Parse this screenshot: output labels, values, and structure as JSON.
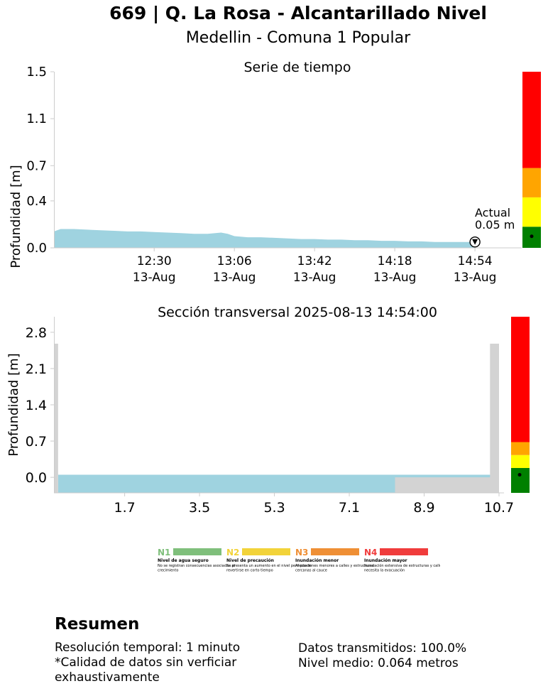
{
  "header": {
    "title": "669 | Q. La Rosa -  Alcantarillado Nivel",
    "subtitle": "Medellin - Comuna 1 Popular"
  },
  "colors": {
    "water": "#9fd3e0",
    "ground": "#d3d3d3",
    "level_green": "#008000",
    "level_yellow": "#ffff00",
    "level_orange": "#ffa500",
    "level_red": "#ff0000"
  },
  "chart_data": [
    {
      "type": "area",
      "title": "Serie de tiempo",
      "ylabel": "Profundidad [m]",
      "xlabel": "",
      "ylim": [
        0,
        1.5
      ],
      "yticks": [
        "0.0",
        "0.4",
        "0.7",
        "1.1",
        "1.5"
      ],
      "ytick_values": [
        0.0,
        0.4,
        0.7,
        1.1,
        1.5
      ],
      "xlim_minutes": [
        11.75,
        15.25
      ],
      "xticks": [
        {
          "label": "12:30",
          "date": "13-Aug"
        },
        {
          "label": "13:06",
          "date": "13-Aug"
        },
        {
          "label": "13:42",
          "date": "13-Aug"
        },
        {
          "label": "14:18",
          "date": "13-Aug"
        },
        {
          "label": "14:54",
          "date": "13-Aug"
        }
      ],
      "xtick_hours": [
        12.5,
        13.1,
        13.7,
        14.3,
        14.9
      ],
      "series": [
        {
          "name": "Profundidad",
          "x_hours": [
            11.75,
            11.8,
            11.9,
            12.0,
            12.1,
            12.2,
            12.3,
            12.4,
            12.5,
            12.6,
            12.7,
            12.8,
            12.9,
            13.0,
            13.05,
            13.1,
            13.2,
            13.3,
            13.4,
            13.5,
            13.6,
            13.7,
            13.8,
            13.9,
            14.0,
            14.1,
            14.2,
            14.3,
            14.4,
            14.5,
            14.6,
            14.7,
            14.8,
            14.9
          ],
          "values": [
            0.14,
            0.16,
            0.16,
            0.155,
            0.15,
            0.145,
            0.14,
            0.14,
            0.135,
            0.13,
            0.125,
            0.12,
            0.12,
            0.13,
            0.12,
            0.1,
            0.09,
            0.09,
            0.085,
            0.08,
            0.075,
            0.075,
            0.07,
            0.07,
            0.065,
            0.065,
            0.06,
            0.06,
            0.055,
            0.055,
            0.05,
            0.05,
            0.05,
            0.05
          ]
        }
      ],
      "annotation": {
        "label": "Actual",
        "value_text": "0.05 m",
        "value": 0.05
      },
      "level_bar": {
        "thresholds": [
          0.0,
          0.18,
          0.43,
          0.68,
          1.5
        ],
        "current": 0.05
      }
    },
    {
      "type": "area",
      "title": "Sección transversal 2025-08-13 14:54:00",
      "ylabel": "Profundidad [m]",
      "ylim": [
        -0.3,
        3.1
      ],
      "yticks": [
        "0.0",
        "0.7",
        "1.4",
        "2.1",
        "2.8"
      ],
      "ytick_values": [
        0.0,
        0.7,
        1.4,
        2.1,
        2.8
      ],
      "xlim": [
        0,
        10.7
      ],
      "xticks": [
        "1.7",
        "3.5",
        "5.3",
        "7.1",
        "8.9",
        "10.7"
      ],
      "xtick_values": [
        1.7,
        3.5,
        5.3,
        7.1,
        8.9,
        10.7
      ],
      "channel": {
        "left_wall": 0.1,
        "right_wall": 10.5,
        "wall_height": 2.58,
        "bed": -0.3,
        "ground_fill_from": 8.2
      },
      "water_level": 0.05,
      "level_bar": {
        "thresholds": [
          0.0,
          0.18,
          0.43,
          0.68,
          3.1
        ],
        "current": 0.05
      }
    }
  ],
  "legend": [
    {
      "code": "N1",
      "name": "Nivel de agua seguro",
      "desc": "No se registran consecuencias asociadas al crecimiento",
      "color": "#7fbf7b"
    },
    {
      "code": "N2",
      "name": "Nivel de precaución",
      "desc": "Se presenta un aumento en el nivel pero puede revertirse en corto tiempo",
      "color": "#f2d33a"
    },
    {
      "code": "N3",
      "name": "Inundación menor",
      "desc": "Afectaciones menores a calles y estructuras cercanas al cauce",
      "color": "#ef8f35"
    },
    {
      "code": "N4",
      "name": "Inundación mayor",
      "desc": "Inundación extensiva de estructuras y calles; se necesita la evacuación",
      "color": "#f03c3c"
    }
  ],
  "summary": {
    "title": "Resumen",
    "resolution": "Resolución temporal: 1 minuto",
    "quality": "*Calidad de datos sin verficiar exhaustivamente",
    "transmitted": "Datos transmitidos: 100.0%",
    "mean_level": "Nivel medio: 0.064 metros"
  }
}
